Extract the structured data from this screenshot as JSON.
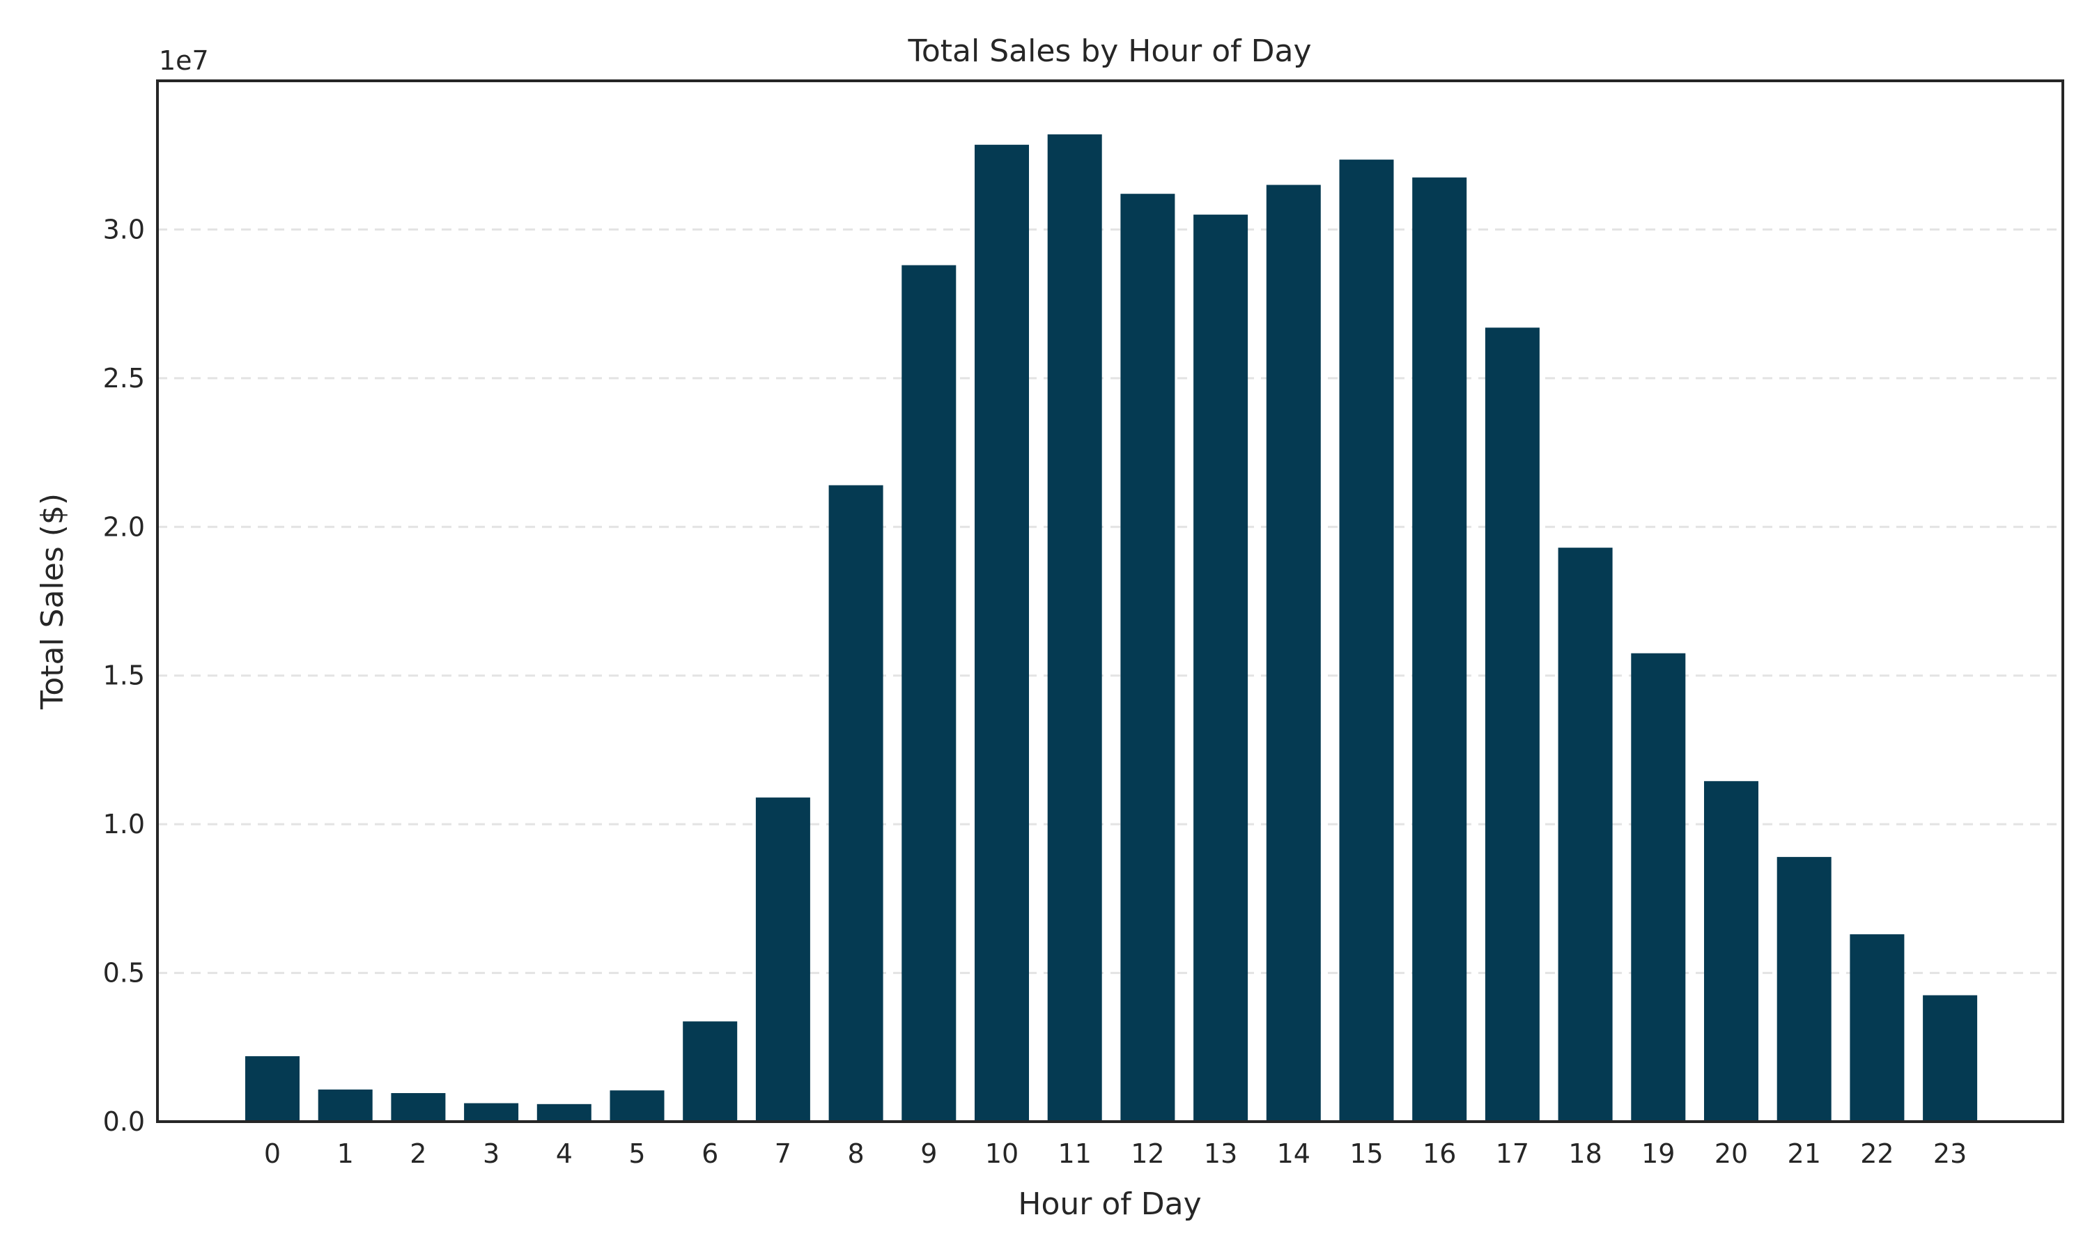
{
  "chart_data": {
    "type": "bar",
    "title": "Total Sales by Hour of Day",
    "xlabel": "Hour of Day",
    "ylabel": "Total Sales ($)",
    "y_scale_label": "1e7",
    "y_scale_factor": 10000000,
    "categories": [
      "0",
      "1",
      "2",
      "3",
      "4",
      "5",
      "6",
      "7",
      "8",
      "9",
      "10",
      "11",
      "12",
      "13",
      "14",
      "15",
      "16",
      "17",
      "18",
      "19",
      "20",
      "21",
      "22",
      "23"
    ],
    "values": [
      2200000,
      1080000,
      960000,
      620000,
      590000,
      1050000,
      3370000,
      10900000,
      21400000,
      28800000,
      32850000,
      33200000,
      31200000,
      30500000,
      31500000,
      32350000,
      31750000,
      26700000,
      19300000,
      15750000,
      11450000,
      8900000,
      6300000,
      4250000
    ],
    "ylim": [
      0,
      35000000
    ],
    "yticks": [
      0,
      5000000,
      10000000,
      15000000,
      20000000,
      25000000,
      30000000
    ],
    "ytick_labels": [
      "0.0",
      "0.5",
      "1.0",
      "1.5",
      "2.0",
      "2.5",
      "3.0"
    ],
    "grid": "horizontal dashed",
    "bar_color": "#053a52",
    "legend": "none"
  }
}
